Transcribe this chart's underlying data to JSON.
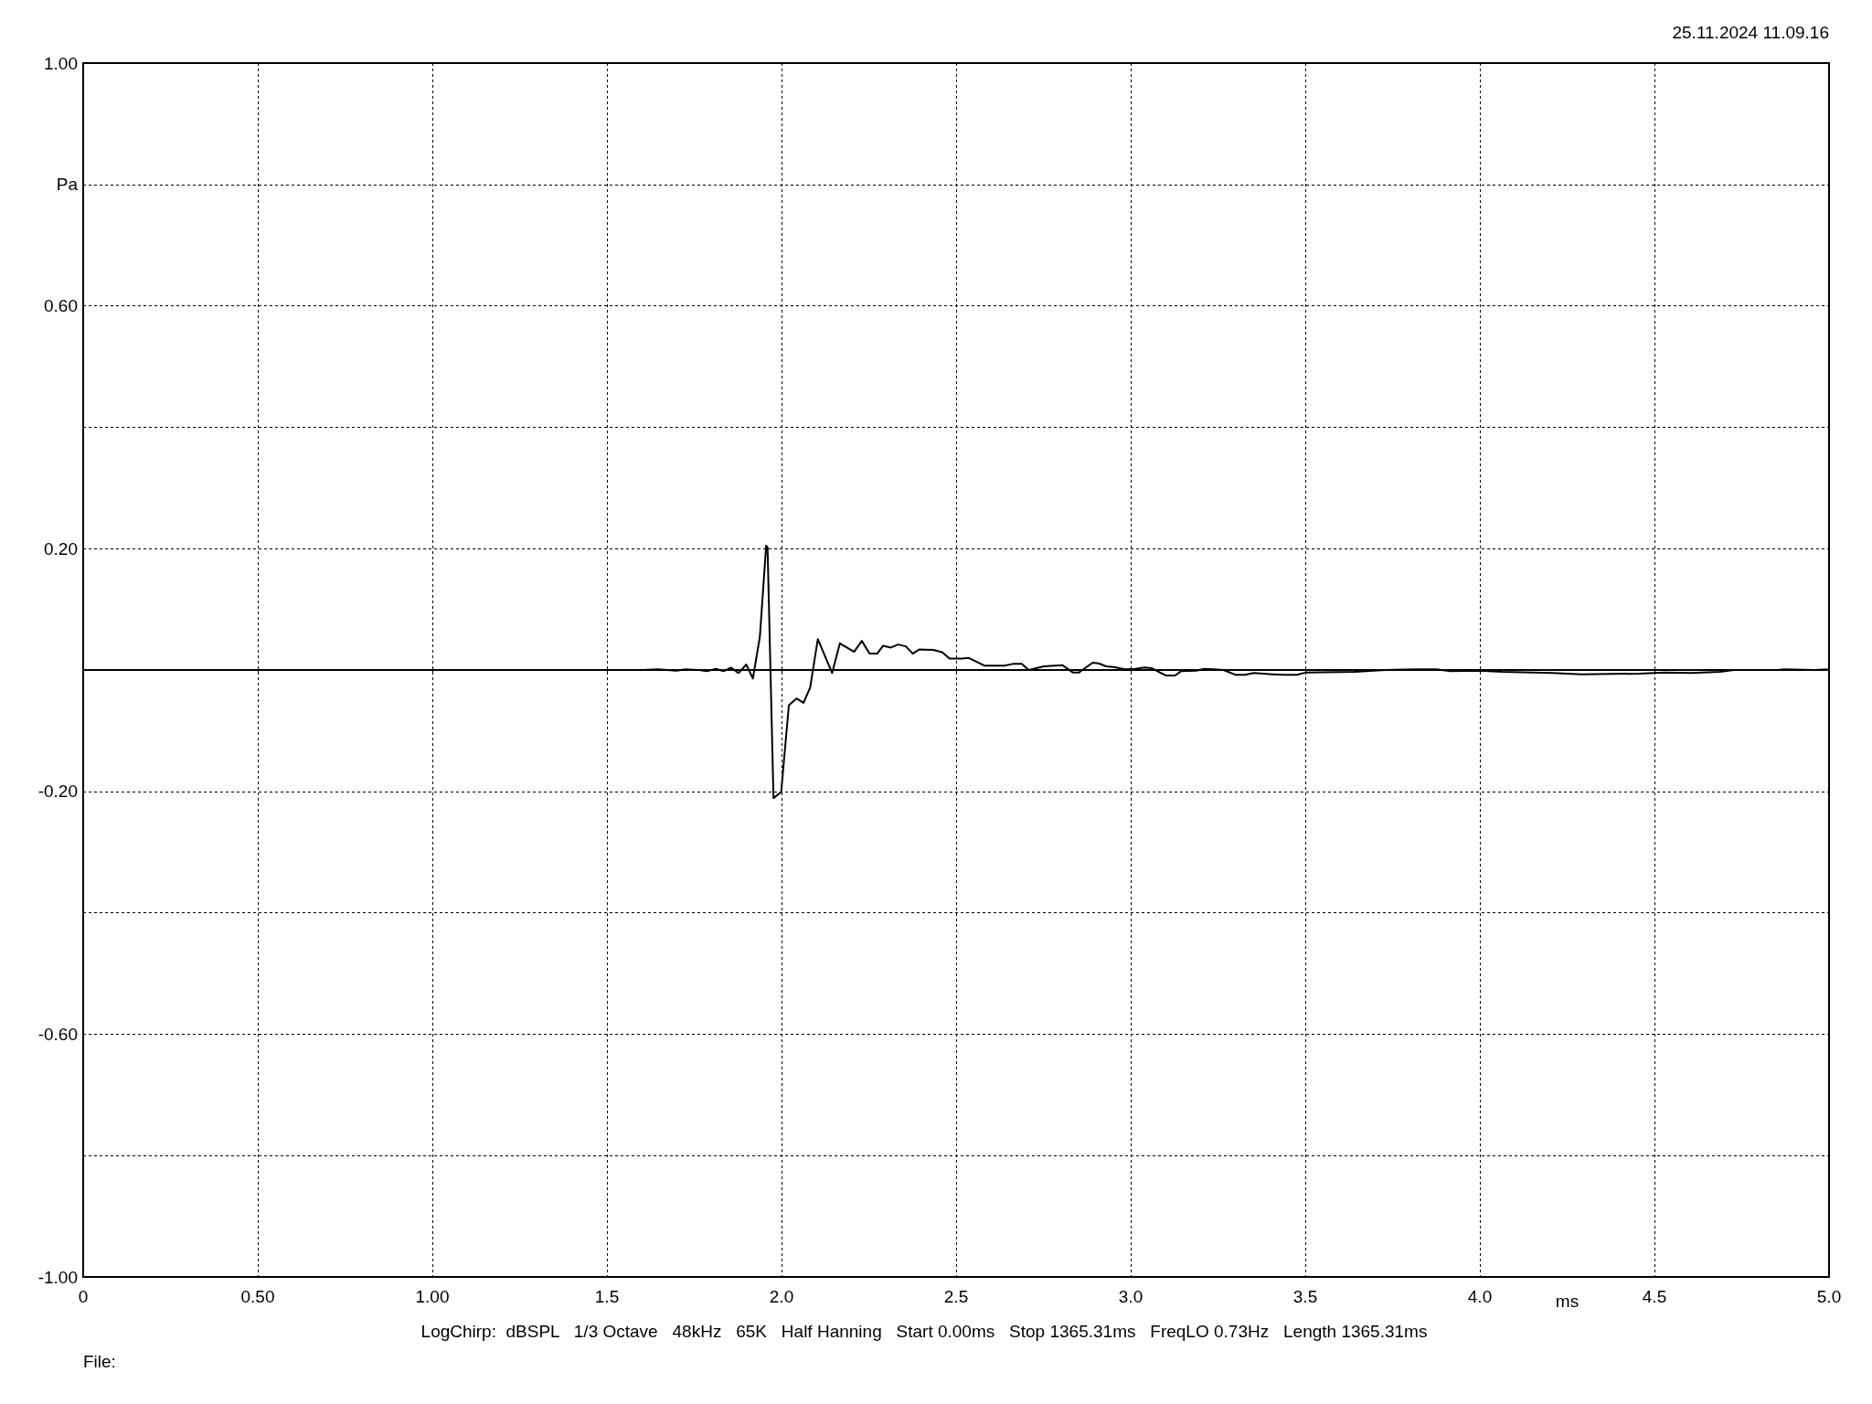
{
  "chart_data": {
    "type": "line",
    "xlabel": "ms",
    "ylabel": "Pa",
    "x": [
      0,
      1.6,
      1.646,
      1.699,
      1.725,
      1.764,
      1.786,
      1.812,
      1.834,
      1.855,
      1.877,
      1.899,
      1.918,
      1.938,
      1.956,
      1.96,
      1.977,
      1.999,
      2.021,
      2.043,
      2.063,
      2.082,
      2.104,
      2.145,
      2.167,
      2.208,
      2.23,
      2.252,
      2.274,
      2.291,
      2.313,
      2.334,
      2.356,
      2.376,
      2.395,
      2.435,
      2.461,
      2.481,
      2.517,
      2.535,
      2.582,
      2.638,
      2.662,
      2.688,
      2.708,
      2.751,
      2.804,
      2.834,
      2.852,
      2.891,
      2.908,
      2.93,
      2.952,
      2.983,
      3.013,
      3.039,
      3.061,
      3.1,
      3.127,
      3.144,
      3.188,
      3.21,
      3.24,
      3.266,
      3.301,
      3.327,
      3.353,
      3.38,
      3.406,
      3.441,
      3.476,
      3.502,
      3.641,
      3.729,
      3.815,
      3.876,
      3.915,
      4.0,
      4.064,
      4.208,
      4.291,
      4.456,
      4.531,
      4.605,
      4.688,
      4.727,
      4.853,
      4.871,
      4.958,
      5.0
    ],
    "values": [
      0,
      0,
      0.001,
      -0.001,
      0.001,
      0,
      -0.002,
      0.002,
      -0.002,
      0.004,
      -0.005,
      0.009,
      -0.014,
      0.055,
      0.205,
      0.202,
      -0.211,
      -0.201,
      -0.058,
      -0.047,
      -0.054,
      -0.029,
      0.051,
      -0.005,
      0.044,
      0.03,
      0.048,
      0.027,
      0.027,
      0.04,
      0.037,
      0.042,
      0.039,
      0.027,
      0.034,
      0.033,
      0.029,
      0.019,
      0.019,
      0.02,
      0.007,
      0.007,
      0.01,
      0.01,
      0,
      0.006,
      0.008,
      -0.004,
      -0.004,
      0.012,
      0.011,
      0.006,
      0.005,
      0.001,
      0.002,
      0.004,
      0.003,
      -0.009,
      -0.009,
      -0.002,
      -0.001,
      0.002,
      0.001,
      0,
      -0.008,
      -0.008,
      -0.005,
      -0.006,
      -0.007,
      -0.008,
      -0.008,
      -0.004,
      -0.003,
      0,
      0.001,
      0.001,
      -0.002,
      -0.001,
      -0.003,
      -0.005,
      -0.007,
      -0.006,
      -0.004,
      -0.005,
      -0.003,
      0,
      0,
      0.001,
      0,
      0.001
    ],
    "color": "#000000",
    "marker": "none",
    "line_style": "solid",
    "xlim": [
      0,
      5
    ],
    "ylim": [
      -1,
      1
    ],
    "xticks": [
      0,
      {
        "value": 0.5,
        "label": "0.50"
      },
      {
        "value": 1,
        "label": "1.00"
      },
      {
        "value": 1.5,
        "label": "1.5"
      },
      {
        "value": 2,
        "label": "2.0"
      },
      {
        "value": 2.5,
        "label": "2.5"
      },
      {
        "value": 3,
        "label": "3.0"
      },
      {
        "value": 3.5,
        "label": "3.5"
      },
      {
        "value": 4,
        "label": "4.0"
      },
      {
        "value": 4.5,
        "label": "4.5"
      },
      {
        "value": 5,
        "label": "5.0"
      }
    ],
    "yticks": [
      {
        "value": -1,
        "label": "-1.00"
      },
      {
        "value": -0.8,
        "label": null
      },
      {
        "value": -0.6,
        "label": "-0.60"
      },
      {
        "value": -0.4,
        "label": null
      },
      {
        "value": -0.2,
        "label": "-0.20"
      },
      {
        "value": 0,
        "label": null
      },
      {
        "value": 0.2,
        "label": "0.20"
      },
      {
        "value": 0.4,
        "label": null
      },
      {
        "value": 0.6,
        "label": "0.60"
      },
      {
        "value": 0.8,
        "label": null
      },
      {
        "value": 1,
        "label": "1.00"
      }
    ],
    "grid": true,
    "annotations": [
      "25.11.2024 11.09.16",
      "LogChirp:  dBSPL   1/3 Octave   48kHz   65K   Half Hanning   Start 0.00ms   Stop 1365.31ms   FreqLO 0.73Hz   Length 1365.31ms",
      "File:"
    ]
  }
}
